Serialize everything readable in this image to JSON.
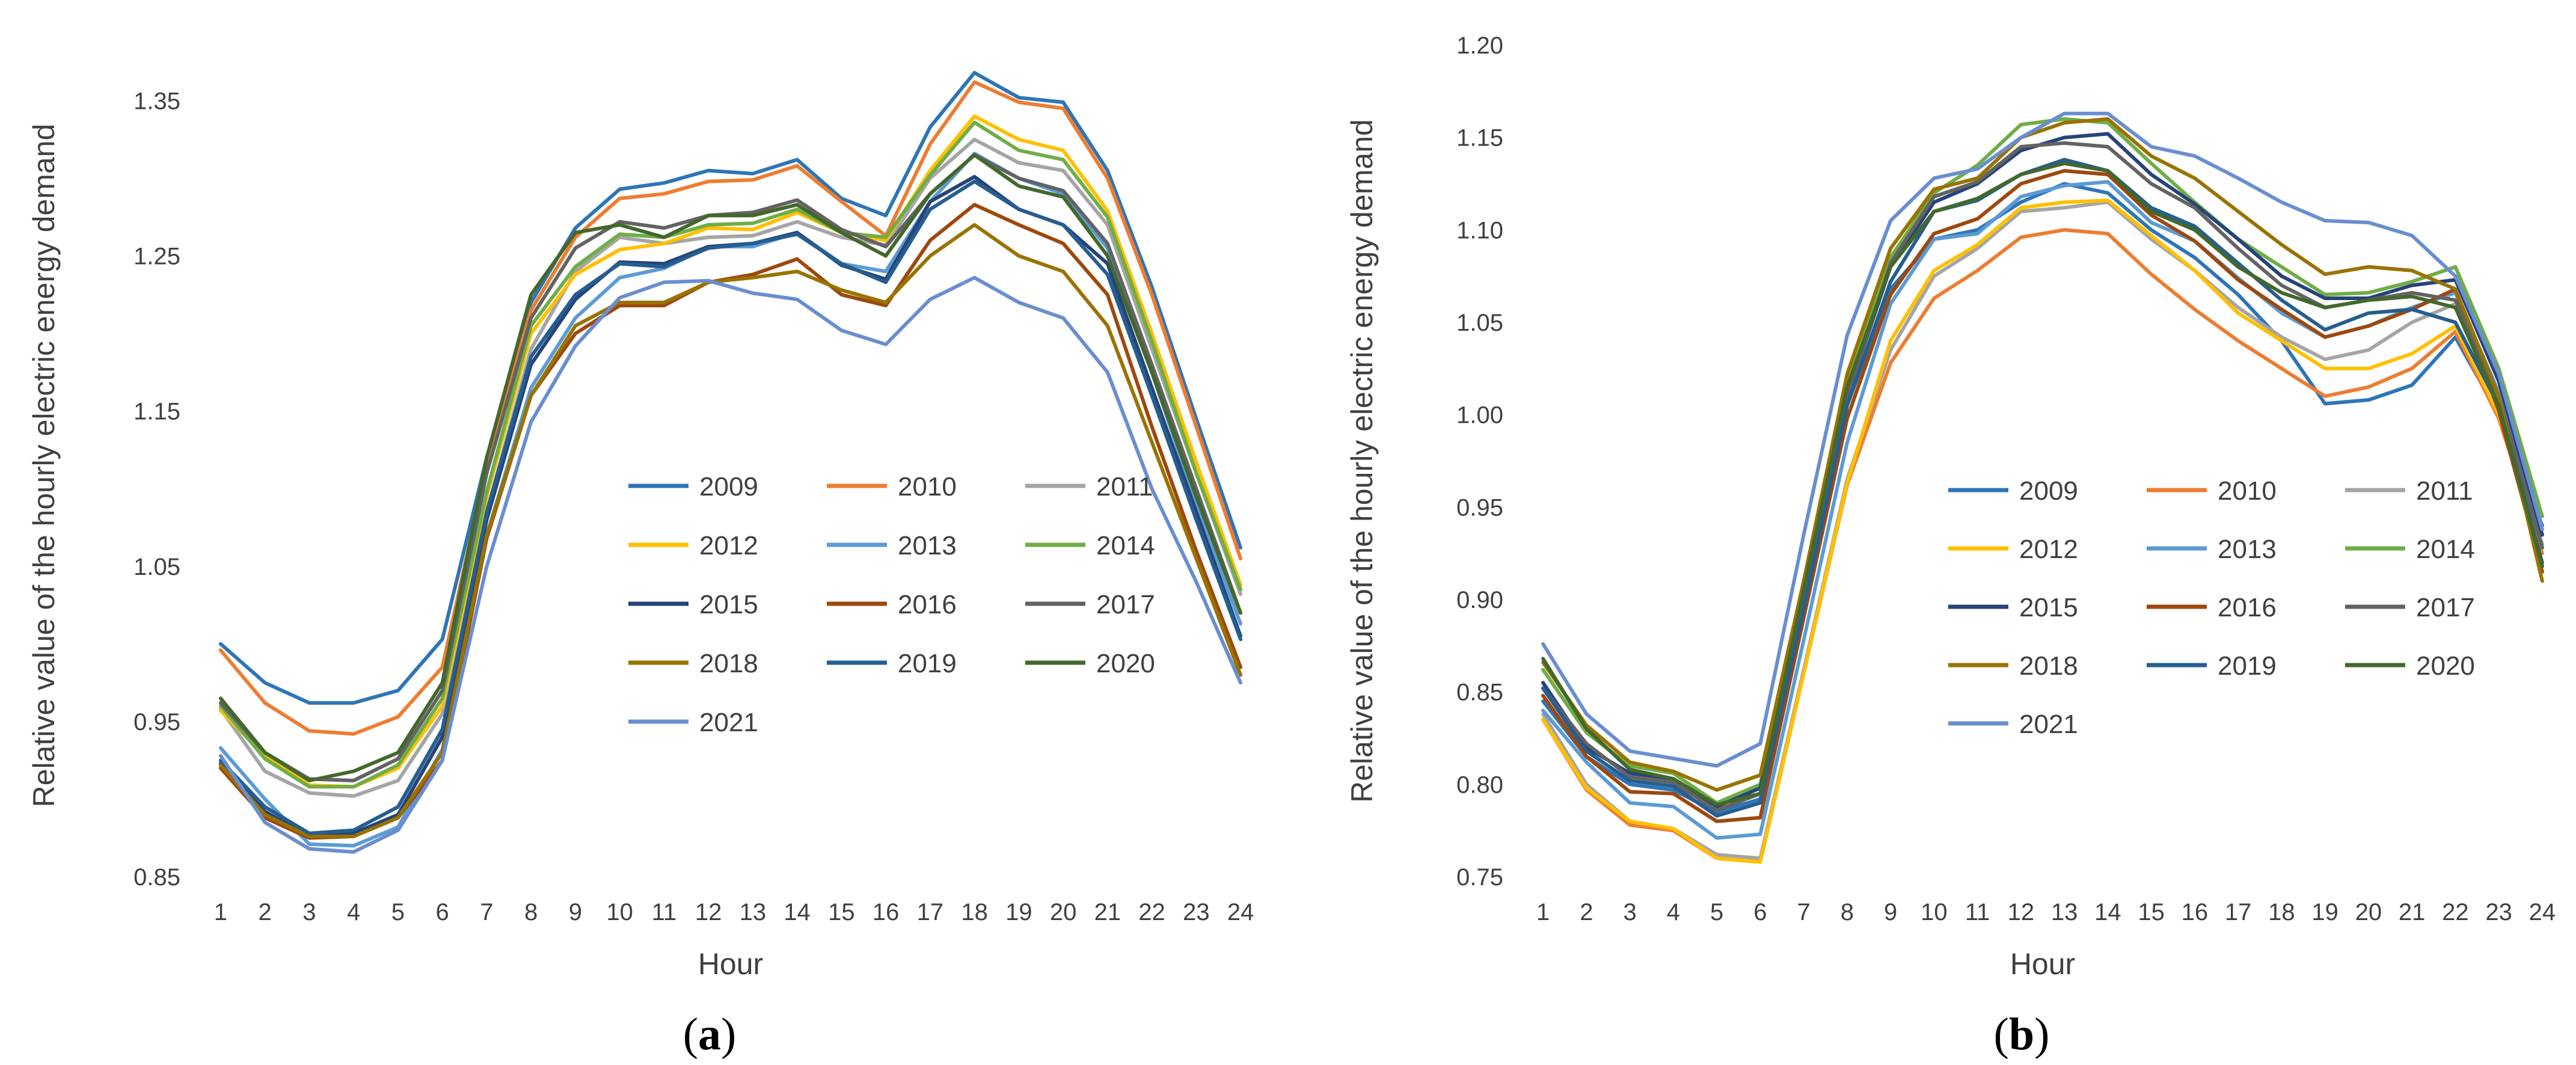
{
  "chart_data": [
    {
      "type": "line",
      "panel_label": "a",
      "xlabel": "Hour",
      "ylabel": "Relative value of the hourly electric energy demand",
      "ylim": [
        0.85,
        1.38
      ],
      "yticks": [
        "0.85",
        "0.95",
        "1.05",
        "1.15",
        "1.25",
        "1.35"
      ],
      "ytick_values": [
        0.85,
        0.95,
        1.05,
        1.15,
        1.25,
        1.35
      ],
      "x": [
        1,
        2,
        3,
        4,
        5,
        6,
        7,
        8,
        9,
        10,
        11,
        12,
        13,
        14,
        15,
        16,
        17,
        18,
        19,
        20,
        21,
        22,
        23,
        24
      ],
      "legend_position": "center-right",
      "series": [
        {
          "name": "2009",
          "color": "#2e75b6",
          "values": [
            1.0,
            0.975,
            0.962,
            0.962,
            0.97,
            1.003,
            1.12,
            1.22,
            1.268,
            1.293,
            1.297,
            1.305,
            1.303,
            1.312,
            1.287,
            1.276,
            1.333,
            1.368,
            1.352,
            1.349,
            1.305,
            1.23,
            1.145,
            1.062
          ]
        },
        {
          "name": "2010",
          "color": "#ed7d31",
          "values": [
            0.996,
            0.962,
            0.944,
            0.942,
            0.953,
            0.985,
            1.115,
            1.215,
            1.262,
            1.287,
            1.29,
            1.298,
            1.299,
            1.308,
            1.285,
            1.263,
            1.322,
            1.362,
            1.349,
            1.345,
            1.3,
            1.225,
            1.14,
            1.055
          ]
        },
        {
          "name": "2011",
          "color": "#a5a5a5",
          "values": [
            0.958,
            0.918,
            0.904,
            0.902,
            0.912,
            0.955,
            1.085,
            1.19,
            1.24,
            1.262,
            1.258,
            1.262,
            1.263,
            1.272,
            1.262,
            1.257,
            1.3,
            1.325,
            1.31,
            1.305,
            1.27,
            1.19,
            1.11,
            1.032
          ]
        },
        {
          "name": "2012",
          "color": "#ffc000",
          "values": [
            0.957,
            0.928,
            0.909,
            0.908,
            0.92,
            0.96,
            1.095,
            1.2,
            1.238,
            1.254,
            1.258,
            1.268,
            1.267,
            1.278,
            1.265,
            1.26,
            1.305,
            1.34,
            1.325,
            1.318,
            1.279,
            1.2,
            1.117,
            1.038
          ]
        },
        {
          "name": "2013",
          "color": "#5b9bd5",
          "values": [
            0.933,
            0.9,
            0.871,
            0.87,
            0.882,
            0.932,
            1.07,
            1.165,
            1.21,
            1.236,
            1.242,
            1.256,
            1.256,
            1.265,
            1.245,
            1.24,
            1.285,
            1.316,
            1.3,
            1.29,
            1.255,
            1.175,
            1.09,
            1.013
          ]
        },
        {
          "name": "2014",
          "color": "#70ad47",
          "values": [
            0.96,
            0.926,
            0.908,
            0.908,
            0.922,
            0.965,
            1.098,
            1.205,
            1.243,
            1.264,
            1.262,
            1.27,
            1.271,
            1.28,
            1.265,
            1.262,
            1.302,
            1.336,
            1.318,
            1.312,
            1.275,
            1.195,
            1.11,
            1.035
          ]
        },
        {
          "name": "2015",
          "color": "#264478",
          "values": [
            0.923,
            0.892,
            0.876,
            0.878,
            0.89,
            0.94,
            1.08,
            1.18,
            1.222,
            1.246,
            1.245,
            1.256,
            1.258,
            1.265,
            1.244,
            1.235,
            1.285,
            1.301,
            1.28,
            1.27,
            1.245,
            1.165,
            1.085,
            1.005
          ]
        },
        {
          "name": "2016",
          "color": "#9e480e",
          "values": [
            0.92,
            0.888,
            0.875,
            0.876,
            0.888,
            0.925,
            1.068,
            1.16,
            1.2,
            1.218,
            1.218,
            1.233,
            1.238,
            1.248,
            1.225,
            1.218,
            1.26,
            1.283,
            1.27,
            1.258,
            1.225,
            1.14,
            1.06,
            0.985
          ]
        },
        {
          "name": "2017",
          "color": "#636363",
          "values": [
            0.962,
            0.93,
            0.913,
            0.912,
            0.926,
            0.97,
            1.11,
            1.21,
            1.255,
            1.272,
            1.268,
            1.276,
            1.278,
            1.286,
            1.267,
            1.256,
            1.29,
            1.315,
            1.3,
            1.292,
            1.258,
            1.18,
            1.1,
            1.02
          ]
        },
        {
          "name": "2018",
          "color": "#997300",
          "values": [
            0.922,
            0.89,
            0.876,
            0.876,
            0.888,
            0.93,
            1.07,
            1.16,
            1.205,
            1.22,
            1.22,
            1.233,
            1.236,
            1.24,
            1.228,
            1.22,
            1.25,
            1.27,
            1.25,
            1.24,
            1.205,
            1.13,
            1.055,
            0.98
          ]
        },
        {
          "name": "2019",
          "color": "#255e91",
          "values": [
            0.925,
            0.895,
            0.878,
            0.88,
            0.895,
            0.945,
            1.085,
            1.185,
            1.225,
            1.245,
            1.243,
            1.255,
            1.258,
            1.264,
            1.245,
            1.233,
            1.28,
            1.298,
            1.28,
            1.27,
            1.238,
            1.16,
            1.08,
            1.003
          ]
        },
        {
          "name": "2020",
          "color": "#43682b",
          "values": [
            0.965,
            0.93,
            0.912,
            0.918,
            0.93,
            0.975,
            1.12,
            1.225,
            1.265,
            1.27,
            1.262,
            1.276,
            1.276,
            1.283,
            1.265,
            1.25,
            1.29,
            1.315,
            1.295,
            1.288,
            1.25,
            1.175,
            1.095,
            1.02
          ]
        },
        {
          "name": "2021",
          "color": "#698ed0",
          "values": [
            0.928,
            0.885,
            0.868,
            0.866,
            0.88,
            0.925,
            1.05,
            1.143,
            1.192,
            1.223,
            1.233,
            1.234,
            1.226,
            1.222,
            1.202,
            1.193,
            1.222,
            1.236,
            1.22,
            1.21,
            1.175,
            1.1,
            1.04,
            0.975
          ]
        }
      ]
    },
    {
      "type": "line",
      "panel_label": "b",
      "xlabel": "Hour",
      "ylabel": "Relative value of the hourly electric energy demand",
      "ylim": [
        0.75,
        1.2
      ],
      "yticks": [
        "0.75",
        "0.80",
        "0.85",
        "0.90",
        "0.95",
        "1.00",
        "1.05",
        "1.10",
        "1.15",
        "1.20"
      ],
      "ytick_values": [
        0.75,
        0.8,
        0.85,
        0.9,
        0.95,
        1.0,
        1.05,
        1.1,
        1.15,
        1.2
      ],
      "x": [
        1,
        2,
        3,
        4,
        5,
        6,
        7,
        8,
        9,
        10,
        11,
        12,
        13,
        14,
        15,
        16,
        17,
        18,
        19,
        20,
        21,
        22,
        23,
        24
      ],
      "legend_position": "center-right",
      "series": [
        {
          "name": "2009",
          "color": "#2e75b6",
          "values": [
            0.845,
            0.815,
            0.8,
            0.797,
            0.785,
            0.792,
            0.9,
            1.005,
            1.068,
            1.095,
            1.1,
            1.115,
            1.125,
            1.12,
            1.1,
            1.085,
            1.065,
            1.04,
            1.006,
            1.008,
            1.016,
            1.042,
            1.0,
            0.94
          ]
        },
        {
          "name": "2010",
          "color": "#ed7d31",
          "values": [
            0.835,
            0.797,
            0.778,
            0.775,
            0.76,
            0.758,
            0.86,
            0.962,
            1.028,
            1.063,
            1.078,
            1.096,
            1.1,
            1.098,
            1.076,
            1.057,
            1.04,
            1.025,
            1.01,
            1.015,
            1.025,
            1.045,
            0.998,
            0.925
          ]
        },
        {
          "name": "2011",
          "color": "#a5a5a5",
          "values": [
            0.838,
            0.8,
            0.78,
            0.776,
            0.762,
            0.76,
            0.862,
            0.965,
            1.035,
            1.075,
            1.09,
            1.11,
            1.112,
            1.115,
            1.095,
            1.078,
            1.058,
            1.042,
            1.03,
            1.035,
            1.05,
            1.06,
            1.005,
            0.93
          ]
        },
        {
          "name": "2012",
          "color": "#ffc000",
          "values": [
            0.835,
            0.798,
            0.78,
            0.776,
            0.76,
            0.758,
            0.86,
            0.963,
            1.04,
            1.078,
            1.092,
            1.112,
            1.115,
            1.116,
            1.097,
            1.078,
            1.055,
            1.04,
            1.025,
            1.025,
            1.033,
            1.048,
            1.0,
            0.928
          ]
        },
        {
          "name": "2013",
          "color": "#5b9bd5",
          "values": [
            0.84,
            0.812,
            0.79,
            0.788,
            0.771,
            0.773,
            0.878,
            0.985,
            1.06,
            1.095,
            1.098,
            1.118,
            1.124,
            1.126,
            1.104,
            1.094,
            1.074,
            1.055,
            1.042,
            1.048,
            1.058,
            1.066,
            1.012,
            0.935
          ]
        },
        {
          "name": "2014",
          "color": "#70ad47",
          "values": [
            0.862,
            0.828,
            0.81,
            0.806,
            0.79,
            0.8,
            0.908,
            1.02,
            1.085,
            1.12,
            1.135,
            1.157,
            1.16,
            1.158,
            1.136,
            1.115,
            1.095,
            1.08,
            1.065,
            1.066,
            1.072,
            1.08,
            1.025,
            0.945
          ]
        },
        {
          "name": "2015",
          "color": "#264478",
          "values": [
            0.855,
            0.82,
            0.806,
            0.803,
            0.788,
            0.798,
            0.902,
            1.01,
            1.08,
            1.115,
            1.125,
            1.143,
            1.15,
            1.152,
            1.13,
            1.114,
            1.095,
            1.075,
            1.063,
            1.063,
            1.07,
            1.073,
            1.018,
            0.935
          ]
        },
        {
          "name": "2016",
          "color": "#9e480e",
          "values": [
            0.848,
            0.815,
            0.796,
            0.795,
            0.78,
            0.782,
            0.89,
            0.998,
            1.065,
            1.098,
            1.106,
            1.125,
            1.132,
            1.13,
            1.108,
            1.094,
            1.073,
            1.057,
            1.042,
            1.048,
            1.057,
            1.068,
            1.002,
            0.915
          ]
        },
        {
          "name": "2017",
          "color": "#636363",
          "values": [
            0.852,
            0.822,
            0.804,
            0.801,
            0.786,
            0.795,
            0.9,
            1.01,
            1.082,
            1.118,
            1.126,
            1.145,
            1.147,
            1.145,
            1.125,
            1.112,
            1.09,
            1.07,
            1.058,
            1.062,
            1.066,
            1.062,
            1.01,
            0.928
          ]
        },
        {
          "name": "2018",
          "color": "#997300",
          "values": [
            0.866,
            0.832,
            0.812,
            0.807,
            0.797,
            0.805,
            0.91,
            1.022,
            1.09,
            1.122,
            1.128,
            1.15,
            1.158,
            1.16,
            1.14,
            1.128,
            1.11,
            1.092,
            1.076,
            1.08,
            1.078,
            1.068,
            1.01,
            0.91
          ]
        },
        {
          "name": "2019",
          "color": "#255e91",
          "values": [
            0.852,
            0.818,
            0.802,
            0.799,
            0.783,
            0.79,
            0.895,
            1.005,
            1.072,
            1.11,
            1.116,
            1.13,
            1.138,
            1.132,
            1.112,
            1.102,
            1.082,
            1.062,
            1.046,
            1.055,
            1.057,
            1.05,
            1.005,
            0.92
          ]
        },
        {
          "name": "2020",
          "color": "#43682b",
          "values": [
            0.868,
            0.83,
            0.808,
            0.803,
            0.789,
            0.795,
            0.905,
            1.015,
            1.08,
            1.11,
            1.117,
            1.13,
            1.136,
            1.132,
            1.11,
            1.1,
            1.08,
            1.066,
            1.058,
            1.062,
            1.064,
            1.058,
            1.005,
            0.918
          ]
        },
        {
          "name": "2021",
          "color": "#698ed0",
          "values": [
            0.876,
            0.838,
            0.818,
            0.814,
            0.81,
            0.822,
            0.935,
            1.043,
            1.105,
            1.128,
            1.133,
            1.15,
            1.163,
            1.163,
            1.145,
            1.14,
            1.128,
            1.115,
            1.105,
            1.104,
            1.097,
            1.075,
            1.022,
            0.938
          ]
        }
      ]
    }
  ]
}
